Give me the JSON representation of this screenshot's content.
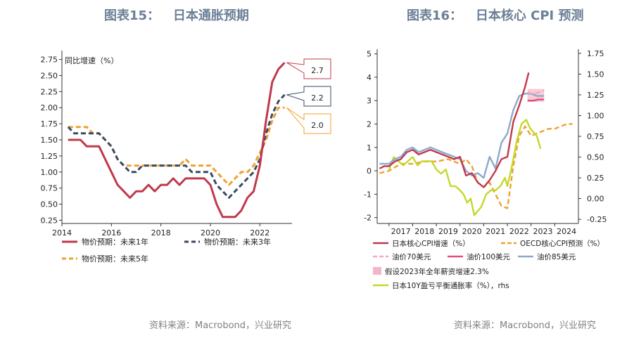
{
  "figures": [
    {
      "title": "图表15：   日本通胀预期",
      "source": "资料来源：Macrobond，兴业研究"
    },
    {
      "title": "图表16：   日本核心 CPI 预测",
      "source": "资料来源：Macrobond，兴业研究"
    }
  ],
  "chart_data": [
    {
      "type": "line",
      "title": "日本通胀预期",
      "ylabel": "同比增速（%）",
      "xlim": [
        2014,
        2023.3
      ],
      "ylim": [
        0.2,
        2.8
      ],
      "xticks": [
        "2014",
        "2016",
        "2018",
        "2020",
        "2022"
      ],
      "yticks": [
        "0.25",
        "0.50",
        "0.75",
        "1.00",
        "1.25",
        "1.50",
        "1.75",
        "2.00",
        "2.25",
        "2.50",
        "2.75"
      ],
      "grid": false,
      "legend": "bottom",
      "series": [
        {
          "name": "物价预期：未来1年",
          "color": "#c0394b",
          "style": "solid",
          "points": [
            [
              2014.25,
              1.5
            ],
            [
              2014.75,
              1.5
            ],
            [
              2015.0,
              1.4
            ],
            [
              2015.5,
              1.4
            ],
            [
              2015.75,
              1.2
            ],
            [
              2016.0,
              1.0
            ],
            [
              2016.25,
              0.8
            ],
            [
              2016.5,
              0.7
            ],
            [
              2016.75,
              0.6
            ],
            [
              2017.0,
              0.7
            ],
            [
              2017.25,
              0.7
            ],
            [
              2017.5,
              0.8
            ],
            [
              2017.75,
              0.7
            ],
            [
              2018.0,
              0.8
            ],
            [
              2018.25,
              0.8
            ],
            [
              2018.5,
              0.9
            ],
            [
              2018.75,
              0.8
            ],
            [
              2019.0,
              0.9
            ],
            [
              2019.25,
              0.9
            ],
            [
              2019.5,
              0.9
            ],
            [
              2019.75,
              0.9
            ],
            [
              2020.0,
              0.8
            ],
            [
              2020.25,
              0.5
            ],
            [
              2020.5,
              0.3
            ],
            [
              2020.75,
              0.3
            ],
            [
              2021.0,
              0.3
            ],
            [
              2021.25,
              0.4
            ],
            [
              2021.5,
              0.6
            ],
            [
              2021.75,
              0.7
            ],
            [
              2022.0,
              1.1
            ],
            [
              2022.25,
              1.8
            ],
            [
              2022.5,
              2.4
            ],
            [
              2022.75,
              2.6
            ],
            [
              2023.0,
              2.7
            ]
          ],
          "end_label": "2.7"
        },
        {
          "name": "物价预期：未来3年",
          "color": "#3a4a63",
          "style": "dash",
          "points": [
            [
              2014.25,
              1.7
            ],
            [
              2014.5,
              1.6
            ],
            [
              2015.0,
              1.6
            ],
            [
              2015.5,
              1.6
            ],
            [
              2015.75,
              1.5
            ],
            [
              2016.0,
              1.4
            ],
            [
              2016.25,
              1.2
            ],
            [
              2016.5,
              1.1
            ],
            [
              2016.75,
              1.0
            ],
            [
              2017.0,
              1.0
            ],
            [
              2017.25,
              1.1
            ],
            [
              2017.5,
              1.1
            ],
            [
              2018.0,
              1.1
            ],
            [
              2018.5,
              1.1
            ],
            [
              2019.0,
              1.1
            ],
            [
              2019.25,
              1.0
            ],
            [
              2019.5,
              1.0
            ],
            [
              2019.75,
              1.0
            ],
            [
              2020.0,
              1.0
            ],
            [
              2020.25,
              0.8
            ],
            [
              2020.5,
              0.7
            ],
            [
              2020.75,
              0.6
            ],
            [
              2021.0,
              0.7
            ],
            [
              2021.25,
              0.8
            ],
            [
              2021.5,
              0.9
            ],
            [
              2021.75,
              1.0
            ],
            [
              2022.0,
              1.2
            ],
            [
              2022.25,
              1.6
            ],
            [
              2022.5,
              1.9
            ],
            [
              2022.75,
              2.1
            ],
            [
              2023.0,
              2.2
            ]
          ],
          "end_label": "2.2"
        },
        {
          "name": "物价预期：未来5年",
          "color": "#f0a030",
          "style": "dash",
          "points": [
            [
              2014.25,
              1.7
            ],
            [
              2014.5,
              1.7
            ],
            [
              2015.0,
              1.7
            ],
            [
              2015.25,
              1.6
            ],
            [
              2015.5,
              1.6
            ],
            [
              2015.75,
              1.5
            ],
            [
              2016.0,
              1.4
            ],
            [
              2016.25,
              1.2
            ],
            [
              2016.5,
              1.1
            ],
            [
              2016.75,
              1.1
            ],
            [
              2017.0,
              1.1
            ],
            [
              2017.5,
              1.1
            ],
            [
              2018.0,
              1.1
            ],
            [
              2018.5,
              1.1
            ],
            [
              2018.75,
              1.1
            ],
            [
              2019.0,
              1.2
            ],
            [
              2019.25,
              1.1
            ],
            [
              2019.5,
              1.1
            ],
            [
              2019.75,
              1.1
            ],
            [
              2020.0,
              1.1
            ],
            [
              2020.25,
              1.0
            ],
            [
              2020.5,
              0.9
            ],
            [
              2020.75,
              0.8
            ],
            [
              2021.0,
              0.9
            ],
            [
              2021.25,
              1.0
            ],
            [
              2021.5,
              1.0
            ],
            [
              2021.75,
              1.1
            ],
            [
              2022.0,
              1.3
            ],
            [
              2022.25,
              1.5
            ],
            [
              2022.5,
              1.8
            ],
            [
              2022.75,
              2.0
            ],
            [
              2023.0,
              2.0
            ]
          ],
          "end_label": "2.0"
        }
      ]
    },
    {
      "type": "line",
      "title": "日本核心 CPI 预测",
      "xlim": [
        2016.5,
        2025.0
      ],
      "ylim_left": [
        -2.25,
        5.2
      ],
      "ylim_right": [
        -0.3,
        1.8
      ],
      "xticks": [
        "2017",
        "2018",
        "2019",
        "2020",
        "2021",
        "2022",
        "2023",
        "2024"
      ],
      "yticks_left": [
        "-2",
        "-1",
        "0",
        "1",
        "2",
        "3",
        "4",
        "5"
      ],
      "yticks_right": [
        "-0.25",
        "0.00",
        "0.25",
        "0.50",
        "0.75",
        "1.00",
        "1.25",
        "1.50",
        "1.75"
      ],
      "grid": false,
      "legend": "bottom",
      "shaded_band": {
        "name": "假设2023年全年薪资增速2.3%",
        "color": "#f2b6c6",
        "x": [
          2022.85,
          2023.55
        ],
        "y": [
          2.95,
          3.5
        ]
      },
      "series": [
        {
          "name": "日本核心CPI增速（%）",
          "color": "#c0394b",
          "style": "solid",
          "axis": "left",
          "points": [
            [
              2016.6,
              0.1
            ],
            [
              2016.8,
              0.2
            ],
            [
              2017.0,
              0.2
            ],
            [
              2017.25,
              0.4
            ],
            [
              2017.5,
              0.5
            ],
            [
              2017.75,
              0.8
            ],
            [
              2018.0,
              0.9
            ],
            [
              2018.25,
              0.7
            ],
            [
              2018.5,
              0.8
            ],
            [
              2018.75,
              0.9
            ],
            [
              2019.0,
              0.8
            ],
            [
              2019.25,
              0.7
            ],
            [
              2019.5,
              0.6
            ],
            [
              2019.75,
              0.5
            ],
            [
              2020.0,
              0.6
            ],
            [
              2020.25,
              -0.2
            ],
            [
              2020.5,
              -0.1
            ],
            [
              2020.75,
              -0.5
            ],
            [
              2021.0,
              -0.7
            ],
            [
              2021.25,
              -0.4
            ],
            [
              2021.5,
              0.0
            ],
            [
              2021.75,
              0.5
            ],
            [
              2022.0,
              0.6
            ],
            [
              2022.25,
              2.1
            ],
            [
              2022.5,
              2.8
            ],
            [
              2022.75,
              3.6
            ],
            [
              2022.9,
              4.2
            ]
          ]
        },
        {
          "name": "OECD核心CPI预测（%）",
          "color": "#f0a030",
          "style": "dash",
          "axis": "left",
          "points": [
            [
              2016.6,
              -0.1
            ],
            [
              2017.0,
              0.0
            ],
            [
              2017.5,
              0.3
            ],
            [
              2018.0,
              0.3
            ],
            [
              2018.5,
              0.4
            ],
            [
              2019.0,
              0.4
            ],
            [
              2019.5,
              0.5
            ],
            [
              2020.0,
              0.3
            ],
            [
              2020.25,
              0.5
            ],
            [
              2020.5,
              0.2
            ],
            [
              2020.75,
              -0.5
            ],
            [
              2021.0,
              -0.7
            ],
            [
              2021.25,
              -0.5
            ],
            [
              2021.5,
              -1.0
            ],
            [
              2021.75,
              -1.5
            ],
            [
              2022.0,
              -1.6
            ],
            [
              2022.25,
              0.2
            ],
            [
              2022.5,
              1.5
            ],
            [
              2022.75,
              1.9
            ],
            [
              2023.0,
              1.5
            ],
            [
              2023.25,
              1.6
            ],
            [
              2023.5,
              1.7
            ],
            [
              2023.75,
              1.8
            ],
            [
              2024.0,
              1.8
            ],
            [
              2024.25,
              1.9
            ],
            [
              2024.5,
              2.0
            ],
            [
              2024.75,
              2.0
            ]
          ]
        },
        {
          "name": "油价70美元",
          "color": "#f4a7bd",
          "style": "dash",
          "axis": "left",
          "points": [
            [
              2022.85,
              3.35
            ],
            [
              2023.1,
              3.3
            ],
            [
              2023.3,
              3.35
            ],
            [
              2023.55,
              3.45
            ]
          ]
        },
        {
          "name": "油价100美元",
          "color": "#e84a7f",
          "style": "solid",
          "axis": "left",
          "points": [
            [
              2022.85,
              3.0
            ],
            [
              2023.1,
              3.0
            ],
            [
              2023.3,
              3.05
            ],
            [
              2023.55,
              3.05
            ]
          ]
        },
        {
          "name": "油价85美元",
          "color": "#8fa9cc",
          "style": "solid",
          "axis": "left",
          "points": [
            [
              2016.6,
              0.3
            ],
            [
              2016.8,
              0.3
            ],
            [
              2017.0,
              0.3
            ],
            [
              2017.25,
              0.5
            ],
            [
              2017.5,
              0.6
            ],
            [
              2017.75,
              0.9
            ],
            [
              2018.0,
              1.0
            ],
            [
              2018.25,
              0.8
            ],
            [
              2018.5,
              0.9
            ],
            [
              2018.75,
              1.0
            ],
            [
              2019.0,
              0.9
            ],
            [
              2019.25,
              0.8
            ],
            [
              2019.5,
              0.7
            ],
            [
              2019.75,
              0.6
            ],
            [
              2020.0,
              0.5
            ],
            [
              2020.25,
              0.0
            ],
            [
              2020.5,
              -0.2
            ],
            [
              2020.75,
              -0.1
            ],
            [
              2021.0,
              -0.3
            ],
            [
              2021.25,
              0.6
            ],
            [
              2021.5,
              0.1
            ],
            [
              2021.75,
              1.2
            ],
            [
              2022.0,
              1.6
            ],
            [
              2022.25,
              2.6
            ],
            [
              2022.5,
              3.2
            ],
            [
              2022.75,
              3.3
            ],
            [
              2023.0,
              3.3
            ],
            [
              2023.25,
              3.2
            ],
            [
              2023.55,
              3.2
            ]
          ]
        },
        {
          "name": "日本10Y盈亏平衡通胀率（%），rhs",
          "color": "#c4d82c",
          "style": "solid",
          "axis": "right",
          "points": [
            [
              2017.0,
              0.35
            ],
            [
              2017.2,
              0.5
            ],
            [
              2017.4,
              0.45
            ],
            [
              2017.6,
              0.4
            ],
            [
              2017.8,
              0.45
            ],
            [
              2018.0,
              0.5
            ],
            [
              2018.2,
              0.4
            ],
            [
              2018.4,
              0.45
            ],
            [
              2018.6,
              0.45
            ],
            [
              2018.8,
              0.45
            ],
            [
              2019.0,
              0.35
            ],
            [
              2019.2,
              0.3
            ],
            [
              2019.4,
              0.35
            ],
            [
              2019.6,
              0.15
            ],
            [
              2019.8,
              0.15
            ],
            [
              2020.0,
              0.1
            ],
            [
              2020.15,
              0.05
            ],
            [
              2020.3,
              -0.05
            ],
            [
              2020.45,
              0.0
            ],
            [
              2020.6,
              -0.2
            ],
            [
              2020.75,
              -0.15
            ],
            [
              2020.9,
              -0.1
            ],
            [
              2021.1,
              0.05
            ],
            [
              2021.3,
              0.1
            ],
            [
              2021.5,
              0.1
            ],
            [
              2021.7,
              0.15
            ],
            [
              2021.9,
              0.25
            ],
            [
              2022.0,
              0.15
            ],
            [
              2022.2,
              0.4
            ],
            [
              2022.4,
              0.7
            ],
            [
              2022.6,
              0.9
            ],
            [
              2022.8,
              0.95
            ],
            [
              2022.95,
              0.85
            ],
            [
              2023.1,
              0.8
            ],
            [
              2023.25,
              0.75
            ],
            [
              2023.4,
              0.6
            ]
          ]
        }
      ]
    }
  ]
}
